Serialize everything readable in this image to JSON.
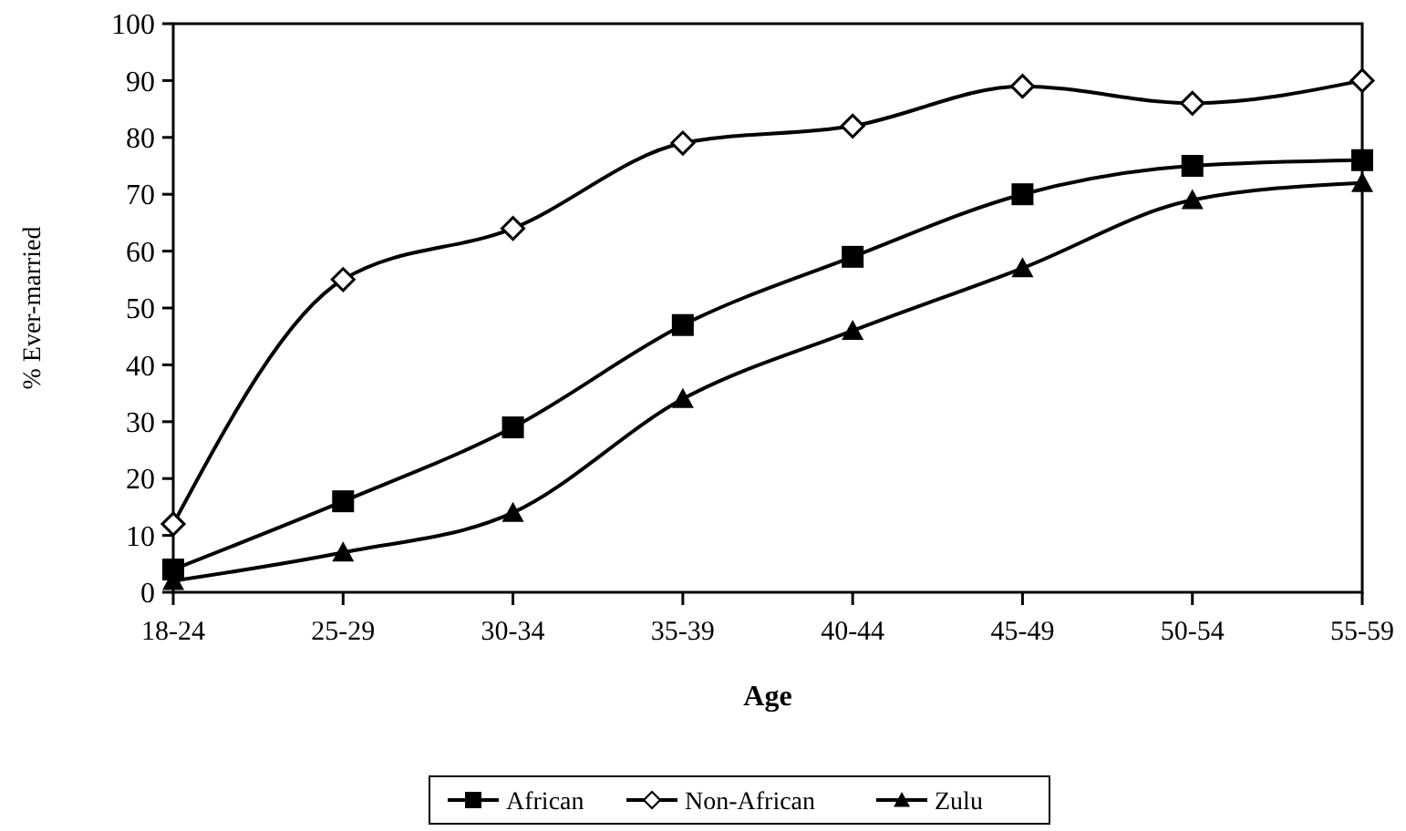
{
  "chart_data": {
    "type": "line",
    "xlabel": "Age",
    "ylabel": "% Ever-married",
    "categories": [
      "18-24",
      "25-29",
      "30-34",
      "35-39",
      "40-44",
      "45-49",
      "50-54",
      "55-59"
    ],
    "series": [
      {
        "name": "African",
        "color": "#000000",
        "marker": "square",
        "values": [
          4,
          16,
          29,
          47,
          59,
          70,
          75,
          76
        ]
      },
      {
        "name": "Non-African",
        "color": "#000000",
        "marker": "diamond",
        "values": [
          12,
          55,
          64,
          79,
          82,
          89,
          86,
          90
        ]
      },
      {
        "name": "Zulu",
        "color": "#000000",
        "marker": "triangle",
        "values": [
          2,
          7,
          14,
          34,
          46,
          57,
          69,
          72
        ]
      }
    ],
    "ylim": [
      0,
      100
    ],
    "yticks": [
      0,
      10,
      20,
      30,
      40,
      50,
      60,
      70,
      80,
      90,
      100
    ],
    "grid": false,
    "legend": "bottom",
    "line_style": "solid"
  }
}
